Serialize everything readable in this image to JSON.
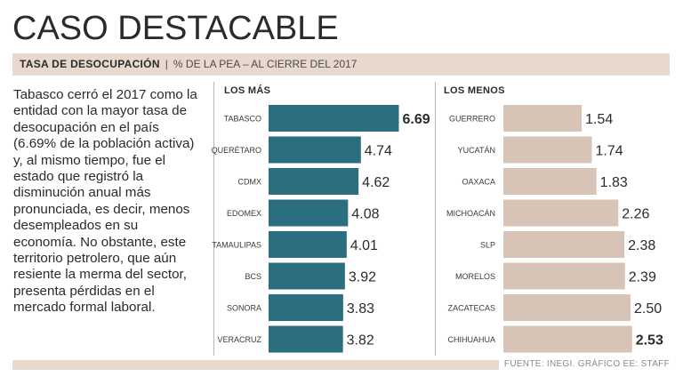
{
  "title": "CASO DESTACABLE",
  "subtitle": {
    "label": "TASA DE DESOCUPACIÓN",
    "separator": "|",
    "detail": "% DE LA PEA – AL CIERRE DEL 2017"
  },
  "body_text": "Tabasco cerró el 2017 como la entidad con la mayor tasa de desocupación en el país (6.69% de la población activa) y, al mismo tiempo, fue el estado que registró la disminución anual más pronunciada, es decir, menos desempleados en su economía. No obstante, este territorio petrolero, que aún resiente la merma del sector, presenta pérdidas en el mercado formal laboral.",
  "source": "FUENTE: INEGI. GRÁFICO EE: STAFF",
  "colors": {
    "mas_bar": "#2b6e80",
    "menos_bar": "#d8c4b7",
    "accent_band": "#e9d8cd"
  },
  "chart_data": [
    {
      "type": "bar",
      "orientation": "horizontal",
      "title": "LOS MÁS",
      "categories": [
        "TABASCO",
        "QUERÉTARO",
        "CDMX",
        "EDOMEX",
        "TAMAULIPAS",
        "BCS",
        "SONORA",
        "VERACRUZ"
      ],
      "values": [
        6.69,
        4.74,
        4.62,
        4.08,
        4.01,
        3.92,
        3.83,
        3.82
      ],
      "value_labels": [
        "6.69",
        "4.74",
        "4.62",
        "4.08",
        "4.01",
        "3.92",
        "3.83",
        "3.82"
      ],
      "highlight_index": 0,
      "unit": "% de la PEA"
    },
    {
      "type": "bar",
      "orientation": "horizontal",
      "title": "LOS MENOS",
      "categories": [
        "GUERRERO",
        "YUCATÁN",
        "OAXACA",
        "MICHOACÁN",
        "SLP",
        "MORELOS",
        "ZACATECAS",
        "CHIHUAHUA"
      ],
      "values": [
        1.54,
        1.74,
        1.83,
        2.26,
        2.38,
        2.39,
        2.5,
        2.53
      ],
      "value_labels": [
        "1.54",
        "1.74",
        "1.83",
        "2.26",
        "2.38",
        "2.39",
        "2.50",
        "2.53"
      ],
      "highlight_index": 7,
      "unit": "% de la PEA"
    }
  ]
}
